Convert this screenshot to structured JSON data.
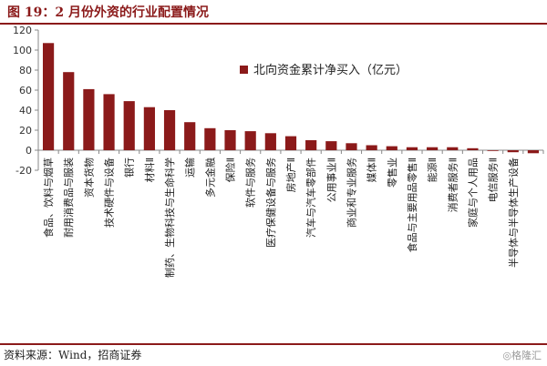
{
  "header": {
    "title": "图 19：2 月份外资的行业配置情况"
  },
  "footer": {
    "source": "资料来源：Wind，招商证券",
    "watermark": "◎格隆汇"
  },
  "colors": {
    "bar": "#8b1a1a",
    "accent": "#8b1a1a"
  },
  "chart_data": {
    "type": "bar",
    "title": "",
    "xlabel": "",
    "ylabel": "",
    "ylim": [
      -20,
      120
    ],
    "yticks": [
      -20,
      0,
      20,
      40,
      60,
      80,
      100,
      120
    ],
    "grid": false,
    "legend_position": "top-right",
    "series": [
      {
        "name": "北向资金累计净买入（亿元）",
        "values": [
          107,
          78,
          61,
          56,
          49,
          43,
          40,
          28,
          22,
          20,
          19,
          17,
          14,
          10,
          9,
          7,
          5,
          4,
          3,
          3,
          3,
          2,
          0,
          -2,
          -3
        ]
      }
    ],
    "categories": [
      "食品、饮料与烟草",
      "耐用消费品与服装",
      "资本货物",
      "技术硬件与设备",
      "银行",
      "材料Ⅱ",
      "制药、生物科技与生命科学",
      "运输",
      "多元金融",
      "保险Ⅱ",
      "软件与服务",
      "医疗保健设备与服务",
      "房地产Ⅱ",
      "汽车与汽车零部件",
      "公用事业Ⅱ",
      "商业和专业服务",
      "媒体Ⅱ",
      "零售业",
      "食品与主要用品零售Ⅱ",
      "能源Ⅱ",
      "消费者服务Ⅱ",
      "家庭与个人用品",
      "电信服务Ⅱ",
      "半导体与半导体生产设备",
      ""
    ]
  }
}
